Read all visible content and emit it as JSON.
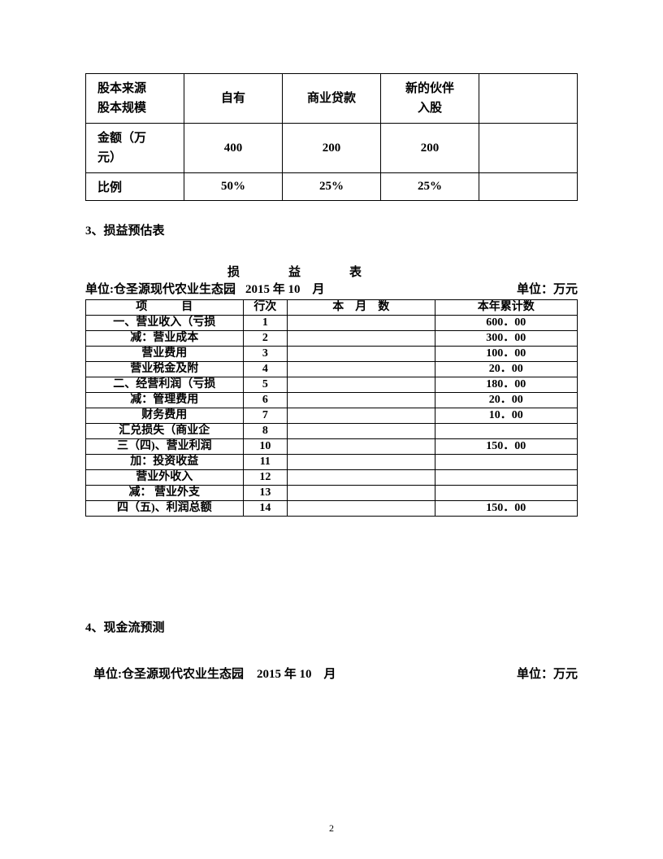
{
  "capital_table": {
    "header_cell": "股本来源\n股本规模",
    "cols": [
      "自有",
      "商业贷款",
      "新的伙伴\n入股",
      ""
    ],
    "rows": [
      {
        "label": "金额（万\n元）",
        "values": [
          "400",
          "200",
          "200",
          ""
        ]
      },
      {
        "label": "比例",
        "values": [
          "50%",
          "25%",
          "25%",
          ""
        ]
      }
    ]
  },
  "section3_heading": "3、损益预估表",
  "pl_table": {
    "title_spaced": "损　　　　益　　　　表",
    "unit_left": "单位:仓圣源现代农业生态园",
    "date": "2015 年  10　月",
    "unit_right": "单位：万元",
    "columns": {
      "item": "项　　　目",
      "seq": "行次",
      "month": "本　月　数",
      "year": "本年累计数"
    },
    "rows": [
      {
        "item": "一、营业收入（亏损",
        "seq": "1",
        "month": "",
        "year": "600．00"
      },
      {
        "item": "减：营业成本",
        "seq": "2",
        "month": "",
        "year": "300．00"
      },
      {
        "item": "营业费用",
        "seq": "3",
        "month": "",
        "year": "100．00"
      },
      {
        "item": "营业税金及附",
        "seq": "4",
        "month": "",
        "year": "20．00"
      },
      {
        "item": "二、经营利润（亏损",
        "seq": "5",
        "month": "",
        "year": "180．00"
      },
      {
        "item": "减：管理费用",
        "seq": "6",
        "month": "",
        "year": "20．00"
      },
      {
        "item": "财务费用",
        "seq": "7",
        "month": "",
        "year": "10．00"
      },
      {
        "item": "汇兑损失（商业企",
        "seq": "8",
        "month": "",
        "year": ""
      },
      {
        "item": "三（四)、营业利润",
        "seq": "10",
        "month": "",
        "year": "150．00"
      },
      {
        "item": "加：投资收益",
        "seq": "11",
        "month": "",
        "year": ""
      },
      {
        "item": "营业外收入",
        "seq": "12",
        "month": "",
        "year": ""
      },
      {
        "item": "减：  营业外支",
        "seq": "13",
        "month": "",
        "year": ""
      },
      {
        "item": "四（五)、利润总额",
        "seq": "14",
        "month": "",
        "year": "150．00"
      }
    ]
  },
  "section4_heading": "4、现金流预测",
  "cash_meta": {
    "unit_left": "单位:仓圣源现代农业生态园",
    "date": "2015 年  10　月",
    "unit_right": "单位：万元"
  },
  "page_number": "2"
}
